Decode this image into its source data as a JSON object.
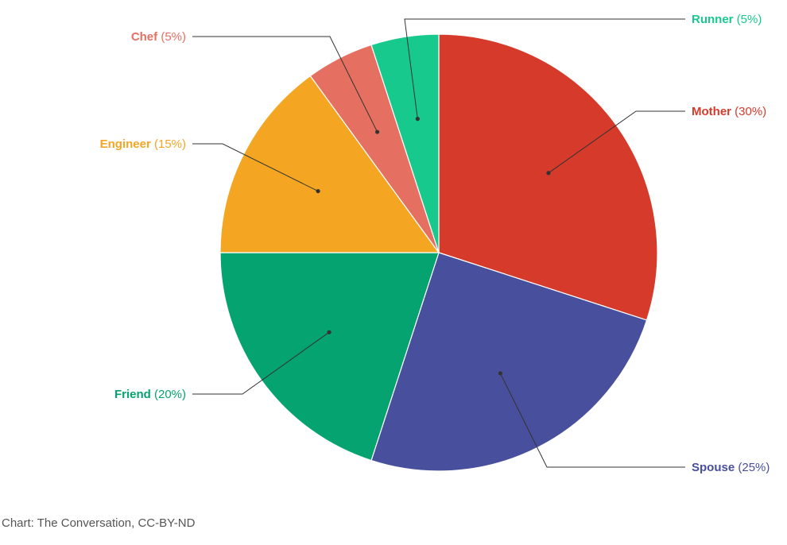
{
  "chart_data": {
    "type": "pie",
    "slices": [
      {
        "name": "Mother",
        "value": 30,
        "pct_text": "(30%)",
        "color": "#d63a2b"
      },
      {
        "name": "Spouse",
        "value": 25,
        "pct_text": "(25%)",
        "color": "#484f9c"
      },
      {
        "name": "Friend",
        "value": 20,
        "pct_text": "(20%)",
        "color": "#05a36f"
      },
      {
        "name": "Engineer",
        "value": 15,
        "pct_text": "(15%)",
        "color": "#f4a623"
      },
      {
        "name": "Chef",
        "value": 5,
        "pct_text": "(5%)",
        "color": "#e56f61"
      },
      {
        "name": "Runner",
        "value": 5,
        "pct_text": "(5%)",
        "color": "#17c98d"
      }
    ],
    "start": "12 o'clock",
    "direction": "clockwise"
  },
  "credit": "Chart: The Conversation, CC-BY-ND"
}
